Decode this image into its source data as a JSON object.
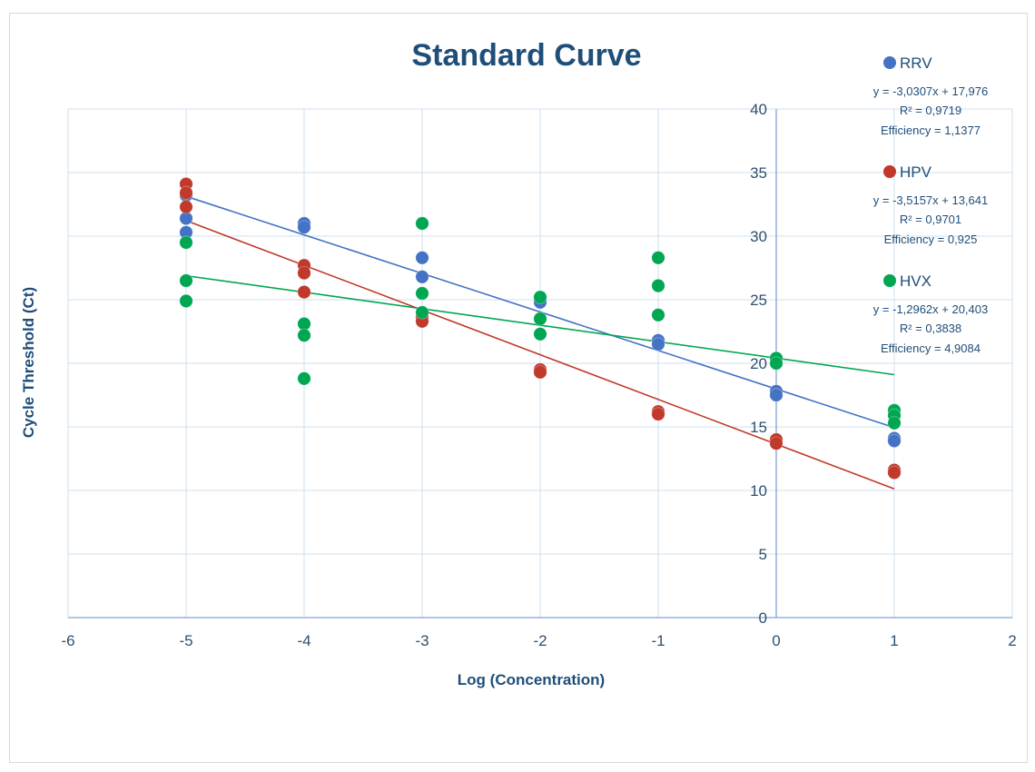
{
  "chart_data": {
    "type": "scatter",
    "title": "Standard Curve",
    "xlabel": "Log (Concentration)",
    "ylabel": "Cycle Threshold (Ct)",
    "xlim": [
      -6,
      2
    ],
    "ylim": [
      0,
      40
    ],
    "x_ticks": [
      "-6",
      "-5",
      "-4",
      "-3",
      "-2",
      "-1",
      "0",
      "1",
      "2"
    ],
    "y_ticks": [
      "0",
      "5",
      "10",
      "15",
      "20",
      "25",
      "30",
      "35",
      "40"
    ],
    "grid": true,
    "legend_position": "right",
    "series": [
      {
        "name": "RRV",
        "color": "#4472c4",
        "points": [
          [
            -5,
            33.2
          ],
          [
            -5,
            31.4
          ],
          [
            -5,
            30.3
          ],
          [
            -4,
            31.0
          ],
          [
            -4,
            30.7
          ],
          [
            -3,
            28.3
          ],
          [
            -3,
            26.8
          ],
          [
            -2,
            24.8
          ],
          [
            -1,
            21.8
          ],
          [
            -1,
            21.5
          ],
          [
            0,
            17.8
          ],
          [
            0,
            17.5
          ],
          [
            1,
            14.1
          ],
          [
            1,
            13.9
          ]
        ],
        "trendline": {
          "x": [
            -5,
            1
          ],
          "slope": -3.0307,
          "intercept": 17.976
        },
        "equation": "y = -3,0307x + 17,976",
        "r2": "R² = 0,9719",
        "efficiency": "Efficiency = 1,1377"
      },
      {
        "name": "HPV",
        "color": "#c0392b",
        "points": [
          [
            -5,
            34.1
          ],
          [
            -5,
            33.4
          ],
          [
            -5,
            32.3
          ],
          [
            -4,
            27.7
          ],
          [
            -4,
            27.1
          ],
          [
            -4,
            25.6
          ],
          [
            -3,
            23.6
          ],
          [
            -3,
            23.3
          ],
          [
            -2,
            19.5
          ],
          [
            -2,
            19.3
          ],
          [
            -1,
            16.2
          ],
          [
            -1,
            16.0
          ],
          [
            0,
            14.0
          ],
          [
            0,
            13.7
          ],
          [
            1,
            11.6
          ],
          [
            1,
            11.4
          ]
        ],
        "trendline": {
          "x": [
            -5,
            1
          ],
          "slope": -3.5157,
          "intercept": 13.641
        },
        "equation": "y = -3,5157x + 13,641",
        "r2": "R² = 0,9701",
        "efficiency": "Efficiency = 0,925"
      },
      {
        "name": "HVX",
        "color": "#00a651",
        "points": [
          [
            -5,
            29.5
          ],
          [
            -5,
            26.5
          ],
          [
            -5,
            24.9
          ],
          [
            -4,
            23.1
          ],
          [
            -4,
            22.2
          ],
          [
            -4,
            18.8
          ],
          [
            -3,
            31.0
          ],
          [
            -3,
            25.5
          ],
          [
            -3,
            24.0
          ],
          [
            -2,
            25.2
          ],
          [
            -2,
            23.5
          ],
          [
            -2,
            22.3
          ],
          [
            -1,
            28.3
          ],
          [
            -1,
            26.1
          ],
          [
            -1,
            23.8
          ],
          [
            0,
            20.4
          ],
          [
            0,
            20.0
          ],
          [
            1,
            16.3
          ],
          [
            1,
            15.9
          ],
          [
            1,
            15.3
          ]
        ],
        "trendline": {
          "x": [
            -5,
            1
          ],
          "slope": -1.2962,
          "intercept": 20.403
        },
        "equation": "y = -1,2962x + 20,403",
        "r2": "R² = 0,3838",
        "efficiency": "Efficiency = 4,9084"
      }
    ]
  }
}
